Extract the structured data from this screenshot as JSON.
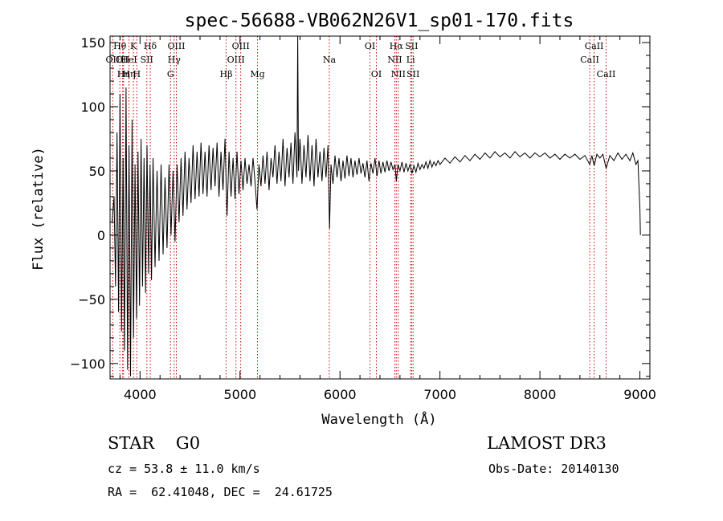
{
  "chart_data": {
    "type": "line",
    "title": "spec-56688-VB062N26V1_sp01-170.fits",
    "xlabel": "Wavelength (Å)",
    "ylabel": "Flux (relative)",
    "xlim": [
      3700,
      9100
    ],
    "ylim": [
      -112,
      155
    ],
    "x_ticks": [
      4000,
      5000,
      6000,
      7000,
      8000,
      9000
    ],
    "y_ticks": [
      -100,
      -50,
      0,
      50,
      100,
      150
    ],
    "x_tick_labels": [
      "4000",
      "5000",
      "6000",
      "7000",
      "8000",
      "9000"
    ],
    "y_tick_labels": [
      "−100",
      "−50",
      "0",
      "50",
      "100",
      "150"
    ],
    "grid": false,
    "line_color": "#000000",
    "marker_color": "#cc0000",
    "series": [
      {
        "name": "flux",
        "points": [
          [
            3720,
            10
          ],
          [
            3740,
            30
          ],
          [
            3755,
            -40
          ],
          [
            3770,
            80
          ],
          [
            3785,
            -60
          ],
          [
            3800,
            110
          ],
          [
            3815,
            -75
          ],
          [
            3830,
            60
          ],
          [
            3845,
            -90
          ],
          [
            3860,
            115
          ],
          [
            3875,
            -105
          ],
          [
            3890,
            70
          ],
          [
            3905,
            -110
          ],
          [
            3920,
            90
          ],
          [
            3935,
            -80
          ],
          [
            3950,
            55
          ],
          [
            3965,
            -65
          ],
          [
            3980,
            65
          ],
          [
            3995,
            -55
          ],
          [
            4010,
            75
          ],
          [
            4025,
            -40
          ],
          [
            4040,
            60
          ],
          [
            4055,
            -45
          ],
          [
            4070,
            70
          ],
          [
            4085,
            -30
          ],
          [
            4100,
            55
          ],
          [
            4115,
            -35
          ],
          [
            4130,
            60
          ],
          [
            4150,
            -25
          ],
          [
            4170,
            50
          ],
          [
            4190,
            -20
          ],
          [
            4210,
            55
          ],
          [
            4230,
            -15
          ],
          [
            4250,
            45
          ],
          [
            4270,
            -10
          ],
          [
            4290,
            55
          ],
          [
            4310,
            0
          ],
          [
            4330,
            50
          ],
          [
            4350,
            -5
          ],
          [
            4370,
            55
          ],
          [
            4390,
            10
          ],
          [
            4410,
            60
          ],
          [
            4430,
            15
          ],
          [
            4450,
            65
          ],
          [
            4470,
            20
          ],
          [
            4490,
            60
          ],
          [
            4510,
            25
          ],
          [
            4530,
            70
          ],
          [
            4550,
            28
          ],
          [
            4570,
            65
          ],
          [
            4590,
            30
          ],
          [
            4610,
            72
          ],
          [
            4630,
            32
          ],
          [
            4650,
            65
          ],
          [
            4670,
            30
          ],
          [
            4690,
            70
          ],
          [
            4710,
            35
          ],
          [
            4730,
            68
          ],
          [
            4750,
            38
          ],
          [
            4770,
            72
          ],
          [
            4790,
            30
          ],
          [
            4810,
            65
          ],
          [
            4830,
            35
          ],
          [
            4850,
            75
          ],
          [
            4870,
            15
          ],
          [
            4890,
            65
          ],
          [
            4910,
            30
          ],
          [
            4930,
            60
          ],
          [
            4950,
            28
          ],
          [
            4970,
            65
          ],
          [
            4990,
            32
          ],
          [
            5010,
            58
          ],
          [
            5030,
            35
          ],
          [
            5050,
            60
          ],
          [
            5070,
            40
          ],
          [
            5090,
            55
          ],
          [
            5110,
            38
          ],
          [
            5130,
            60
          ],
          [
            5150,
            42
          ],
          [
            5170,
            20
          ],
          [
            5190,
            55
          ],
          [
            5210,
            38
          ],
          [
            5230,
            62
          ],
          [
            5250,
            40
          ],
          [
            5270,
            65
          ],
          [
            5290,
            35
          ],
          [
            5310,
            60
          ],
          [
            5330,
            45
          ],
          [
            5350,
            70
          ],
          [
            5370,
            40
          ],
          [
            5390,
            65
          ],
          [
            5410,
            42
          ],
          [
            5430,
            75
          ],
          [
            5450,
            38
          ],
          [
            5470,
            68
          ],
          [
            5490,
            45
          ],
          [
            5510,
            72
          ],
          [
            5530,
            40
          ],
          [
            5550,
            80
          ],
          [
            5570,
            45
          ],
          [
            5577,
            155
          ],
          [
            5585,
            50
          ],
          [
            5600,
            75
          ],
          [
            5620,
            40
          ],
          [
            5640,
            70
          ],
          [
            5660,
            45
          ],
          [
            5680,
            78
          ],
          [
            5700,
            42
          ],
          [
            5720,
            70
          ],
          [
            5740,
            38
          ],
          [
            5760,
            75
          ],
          [
            5780,
            45
          ],
          [
            5800,
            65
          ],
          [
            5820,
            42
          ],
          [
            5840,
            68
          ],
          [
            5860,
            45
          ],
          [
            5880,
            70
          ],
          [
            5895,
            5
          ],
          [
            5910,
            55
          ],
          [
            5930,
            40
          ],
          [
            5950,
            62
          ],
          [
            5970,
            45
          ],
          [
            5990,
            60
          ],
          [
            6010,
            42
          ],
          [
            6030,
            58
          ],
          [
            6050,
            44
          ],
          [
            6070,
            62
          ],
          [
            6090,
            46
          ],
          [
            6110,
            60
          ],
          [
            6130,
            45
          ],
          [
            6150,
            58
          ],
          [
            6170,
            47
          ],
          [
            6190,
            60
          ],
          [
            6210,
            48
          ],
          [
            6230,
            56
          ],
          [
            6250,
            45
          ],
          [
            6270,
            58
          ],
          [
            6290,
            42
          ],
          [
            6310,
            56
          ],
          [
            6330,
            48
          ],
          [
            6350,
            60
          ],
          [
            6370,
            46
          ],
          [
            6390,
            58
          ],
          [
            6410,
            48
          ],
          [
            6430,
            57
          ],
          [
            6450,
            49
          ],
          [
            6470,
            58
          ],
          [
            6490,
            50
          ],
          [
            6510,
            57
          ],
          [
            6530,
            51
          ],
          [
            6550,
            55
          ],
          [
            6563,
            42
          ],
          [
            6580,
            55
          ],
          [
            6600,
            50
          ],
          [
            6620,
            57
          ],
          [
            6640,
            49
          ],
          [
            6660,
            56
          ],
          [
            6680,
            50
          ],
          [
            6700,
            55
          ],
          [
            6720,
            48
          ],
          [
            6740,
            54
          ],
          [
            6760,
            49
          ],
          [
            6780,
            56
          ],
          [
            6800,
            51
          ],
          [
            6820,
            55
          ],
          [
            6840,
            52
          ],
          [
            6860,
            57
          ],
          [
            6880,
            52
          ],
          [
            6900,
            58
          ],
          [
            6920,
            53
          ],
          [
            6940,
            57
          ],
          [
            6960,
            54
          ],
          [
            6980,
            58
          ],
          [
            7000,
            55
          ],
          [
            7050,
            60
          ],
          [
            7100,
            56
          ],
          [
            7150,
            61
          ],
          [
            7200,
            57
          ],
          [
            7250,
            62
          ],
          [
            7300,
            58
          ],
          [
            7350,
            63
          ],
          [
            7400,
            59
          ],
          [
            7450,
            64
          ],
          [
            7500,
            60
          ],
          [
            7550,
            65
          ],
          [
            7600,
            61
          ],
          [
            7650,
            64
          ],
          [
            7700,
            60
          ],
          [
            7750,
            65
          ],
          [
            7800,
            61
          ],
          [
            7850,
            64
          ],
          [
            7900,
            60
          ],
          [
            7950,
            64
          ],
          [
            8000,
            61
          ],
          [
            8050,
            64
          ],
          [
            8100,
            60
          ],
          [
            8150,
            63
          ],
          [
            8200,
            59
          ],
          [
            8250,
            63
          ],
          [
            8300,
            60
          ],
          [
            8350,
            63
          ],
          [
            8400,
            59
          ],
          [
            8450,
            62
          ],
          [
            8498,
            55
          ],
          [
            8520,
            62
          ],
          [
            8542,
            54
          ],
          [
            8570,
            63
          ],
          [
            8600,
            60
          ],
          [
            8630,
            63
          ],
          [
            8662,
            52
          ],
          [
            8700,
            62
          ],
          [
            8740,
            58
          ],
          [
            8780,
            64
          ],
          [
            8820,
            59
          ],
          [
            8860,
            63
          ],
          [
            8900,
            58
          ],
          [
            8930,
            64
          ],
          [
            8960,
            55
          ],
          [
            8980,
            58
          ],
          [
            9000,
            20
          ],
          [
            9005,
            0
          ]
        ]
      }
    ],
    "line_markers": [
      {
        "label": "OII",
        "wl": 3727,
        "row": 2
      },
      {
        "label": "Hθ",
        "wl": 3798,
        "row": 1
      },
      {
        "label": "OII",
        "wl": 3826,
        "row": 2
      },
      {
        "label": "Hη",
        "wl": 3835,
        "row": 3
      },
      {
        "label": "HeI",
        "wl": 3889,
        "row": 2
      },
      {
        "label": "Hη",
        "wl": 3889,
        "row": 3
      },
      {
        "label": "K",
        "wl": 3934,
        "row": 1
      },
      {
        "label": "H",
        "wl": 3968,
        "row": 3
      },
      {
        "label": "SII",
        "wl": 4068,
        "row": 2
      },
      {
        "label": "Hδ",
        "wl": 4102,
        "row": 1
      },
      {
        "label": "G",
        "wl": 4305,
        "row": 3
      },
      {
        "label": "Hγ",
        "wl": 4341,
        "row": 2
      },
      {
        "label": "OIII",
        "wl": 4363,
        "row": 1
      },
      {
        "label": "Hβ",
        "wl": 4861,
        "row": 3
      },
      {
        "label": "OIII",
        "wl": 4959,
        "row": 2
      },
      {
        "label": "OIII",
        "wl": 5007,
        "row": 1
      },
      {
        "label": "Mg",
        "wl": 5175,
        "row": 3
      },
      {
        "label": "Na",
        "wl": 5893,
        "row": 2
      },
      {
        "label": "OI",
        "wl": 6300,
        "row": 1
      },
      {
        "label": "OI",
        "wl": 6364,
        "row": 3
      },
      {
        "label": "NII",
        "wl": 6548,
        "row": 2
      },
      {
        "label": "NII",
        "wl": 6583,
        "row": 3
      },
      {
        "label": "Hα",
        "wl": 6563,
        "row": 1
      },
      {
        "label": "Li",
        "wl": 6707,
        "row": 2
      },
      {
        "label": "SII",
        "wl": 6716,
        "row": 1
      },
      {
        "label": "SII",
        "wl": 6731,
        "row": 3
      },
      {
        "label": "CaII",
        "wl": 8498,
        "row": 2
      },
      {
        "label": "CaII",
        "wl": 8542,
        "row": 1
      },
      {
        "label": "CaII",
        "wl": 8662,
        "row": 3
      }
    ]
  },
  "info": {
    "object_class": "STAR    G0",
    "survey": "LAMOST DR3",
    "cz": "cz = 53.8 ± 11.0 km/s",
    "obs_date": "Obs-Date: 20140130",
    "radec": "RA =  62.41048, DEC =  24.61725"
  }
}
